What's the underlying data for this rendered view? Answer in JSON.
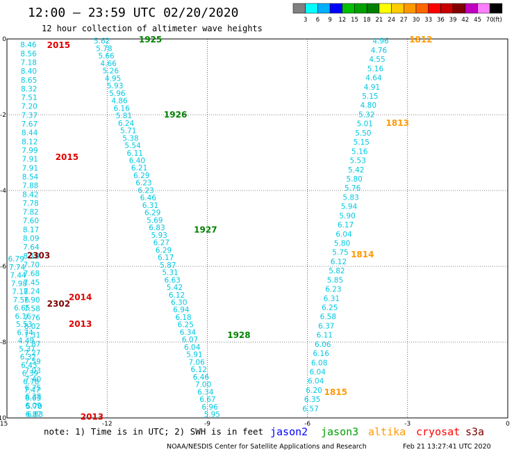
{
  "header": {
    "title": "12:00 – 23:59 UTC 02/20/2020",
    "subtitle": "12 hour collection of altimeter wave heights"
  },
  "color_scale": {
    "labels": [
      "3",
      "6",
      "9",
      "12",
      "15",
      "18",
      "21",
      "24",
      "27",
      "30",
      "33",
      "36",
      "39",
      "42",
      "45",
      "70"
    ],
    "unit": "(ft)",
    "colors": [
      "#808080",
      "#00ffff",
      "#00b0ff",
      "#0000ff",
      "#00c000",
      "#00a000",
      "#008000",
      "#ffff00",
      "#ffcc00",
      "#ff9900",
      "#ff6600",
      "#ff0000",
      "#c80000",
      "#800000",
      "#c000c0",
      "#ff80ff",
      "#000000"
    ]
  },
  "footer": {
    "note": "note:  1) Time is in UTC;  2) SWH is in feet",
    "credit": "NOAA/NESDIS Center for Satellite Applications and Research",
    "timestamp": "Feb 21 13:27:41 UTC 2020"
  },
  "legend": [
    {
      "name": "jason2",
      "color": "#0000ff"
    },
    {
      "name": "jason3",
      "color": "#00a000"
    },
    {
      "name": "altika",
      "color": "#ff9900"
    },
    {
      "name": "cryosat",
      "color": "#ff0000"
    },
    {
      "name": "s3a",
      "color": "#7f0000"
    }
  ],
  "chart_data": {
    "type": "scatter",
    "title": "12:00 – 23:59 UTC 02/20/2020",
    "subtitle": "12 hour collection of altimeter wave heights",
    "xlim": [
      -15,
      0
    ],
    "ylim": [
      -10,
      0
    ],
    "xticks": [
      "-15",
      "-12",
      "-9",
      "-6",
      "-3",
      "0"
    ],
    "yticks": [
      "0",
      "-2",
      "-4",
      "-6",
      "-8",
      "-10"
    ],
    "grid": true,
    "value_color": "#00c8e0",
    "tracks": [
      {
        "id": "track-1",
        "start": [
          -14.6,
          -0.15
        ],
        "end": [
          -14.45,
          -9.9
        ],
        "values": [
          "8.46",
          "8.56",
          "7.18",
          "8.40",
          "8.65",
          "8.32",
          "7.51",
          "7.20",
          "7.37",
          "7.67",
          "8.44",
          "8.12",
          "7.99",
          "7.91",
          "7.91",
          "8.54",
          "7.88",
          "8.42",
          "7.78",
          "7.82",
          "7.60",
          "8.17",
          "8.09",
          "7.64",
          "8.18",
          "7.70",
          "7.68",
          "7.45",
          "7.24",
          "7.90",
          "7.58",
          "7.76",
          "8.02",
          "7.31",
          "7.87",
          "7.27",
          "7.59",
          "7.03",
          "7.40",
          "6.75",
          "6.38",
          "6.09",
          "6.87"
        ]
      },
      {
        "id": "track-2",
        "start": [
          -14.97,
          -5.8
        ],
        "end": [
          -14.4,
          -9.9
        ],
        "values": [
          "6.79",
          "7.74",
          "7.44",
          "7.98",
          "7.18",
          "7.56",
          "6.65",
          "6.16",
          "5.53",
          "6.74",
          "4.49",
          "5.37",
          "6.32",
          "6.43",
          "6.39",
          "6.78",
          "7.47",
          "6.63",
          "5.70",
          "6.83"
        ]
      },
      {
        "id": "track-3",
        "start": [
          -12.4,
          -0.05
        ],
        "end": [
          -9.1,
          -9.9
        ],
        "values": [
          "5.62",
          "5.78",
          "5.66",
          "4.66",
          "5.26",
          "4.95",
          "5.93",
          "5.96",
          "4.86",
          "6.16",
          "5.81",
          "6.24",
          "5.71",
          "5.38",
          "5.54",
          "6.11",
          "6.40",
          "6.21",
          "6.29",
          "6.23",
          "6.23",
          "6.46",
          "6.31",
          "6.29",
          "5.69",
          "6.83",
          "5.93",
          "6.27",
          "6.29",
          "6.17",
          "5.87",
          "5.31",
          "6.63",
          "5.42",
          "6.12",
          "6.30",
          "6.94",
          "6.18",
          "6.25",
          "6.34",
          "6.07",
          "6.04",
          "5.91",
          "7.06",
          "6.12",
          "6.46",
          "7.00",
          "6.34",
          "6.67",
          "6.96",
          "5.95"
        ]
      },
      {
        "id": "track-4",
        "start": [
          -4.05,
          -0.05
        ],
        "end": [
          -6.15,
          -9.75
        ],
        "values": [
          "4.96",
          "4.76",
          "4.55",
          "5.16",
          "4.64",
          "4.91",
          "5.15",
          "4.80",
          "5.32",
          "5.01",
          "5.50",
          "5.15",
          "5.16",
          "5.53",
          "5.42",
          "5.80",
          "5.76",
          "5.83",
          "5.94",
          "5.90",
          "6.17",
          "6.04",
          "5.80",
          "5.75",
          "6.12",
          "5.82",
          "5.85",
          "6.23",
          "6.31",
          "6.25",
          "6.58",
          "6.37",
          "6.11",
          "6.06",
          "6.16",
          "6.08",
          "6.04",
          "6.04",
          "6.20",
          "6.35",
          "6.57"
        ]
      }
    ],
    "pass_labels": [
      {
        "text": "2015",
        "x": -13.8,
        "y": -0.15,
        "color": "#e00000"
      },
      {
        "text": "1925",
        "x": -11.05,
        "y": 0.0,
        "color": "#008000"
      },
      {
        "text": "1812",
        "x": -2.95,
        "y": 0.0,
        "color": "#ff9900"
      },
      {
        "text": "1926",
        "x": -10.3,
        "y": -1.98,
        "color": "#008000"
      },
      {
        "text": "1813",
        "x": -3.65,
        "y": -2.2,
        "color": "#ff9900"
      },
      {
        "text": "2015",
        "x": -13.55,
        "y": -3.1,
        "color": "#e00000"
      },
      {
        "text": "1927",
        "x": -9.4,
        "y": -5.02,
        "color": "#008000"
      },
      {
        "text": "1814",
        "x": -4.7,
        "y": -5.67,
        "color": "#ff9900"
      },
      {
        "text": "2303",
        "x": -14.4,
        "y": -5.7,
        "color": "#7f0000"
      },
      {
        "text": "2014",
        "x": -13.15,
        "y": -6.8,
        "color": "#e00000"
      },
      {
        "text": "2302",
        "x": -13.8,
        "y": -6.97,
        "color": "#7f0000"
      },
      {
        "text": "2013",
        "x": -13.15,
        "y": -7.5,
        "color": "#e00000"
      },
      {
        "text": "1928",
        "x": -8.4,
        "y": -7.8,
        "color": "#008000"
      },
      {
        "text": "1815",
        "x": -5.5,
        "y": -9.3,
        "color": "#ff9900"
      },
      {
        "text": "2013",
        "x": -12.8,
        "y": -9.95,
        "color": "#e00000"
      }
    ]
  }
}
